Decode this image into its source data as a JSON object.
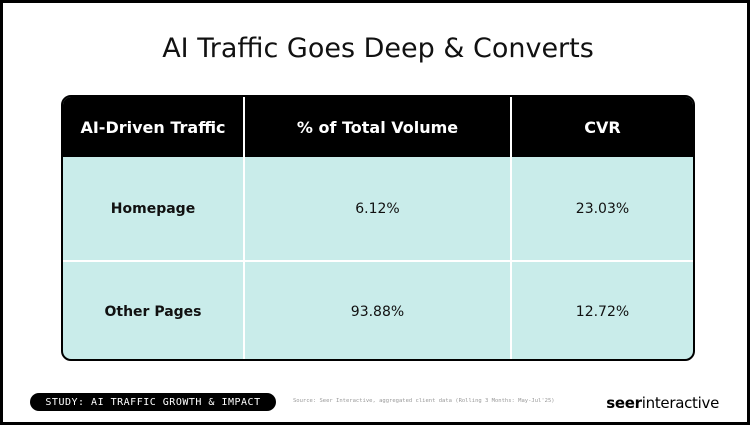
{
  "header": {
    "title": "AI Traffic Goes Deep & Converts"
  },
  "table": {
    "columns": [
      "AI-Driven Traffic",
      "% of Total Volume",
      "CVR"
    ],
    "rows": [
      [
        "Homepage",
        "6.12%",
        "23.03%"
      ],
      [
        "Other Pages",
        "93.88%",
        "12.72%"
      ]
    ]
  },
  "footer": {
    "study": "STUDY: AI TRAFFIC GROWTH & IMPACT",
    "source": "Source: Seer Interactive, aggregated client data (Rolling 3 Months: May-Jul'25)",
    "brand": {
      "bold": "seer",
      "light": "interactive"
    }
  }
}
